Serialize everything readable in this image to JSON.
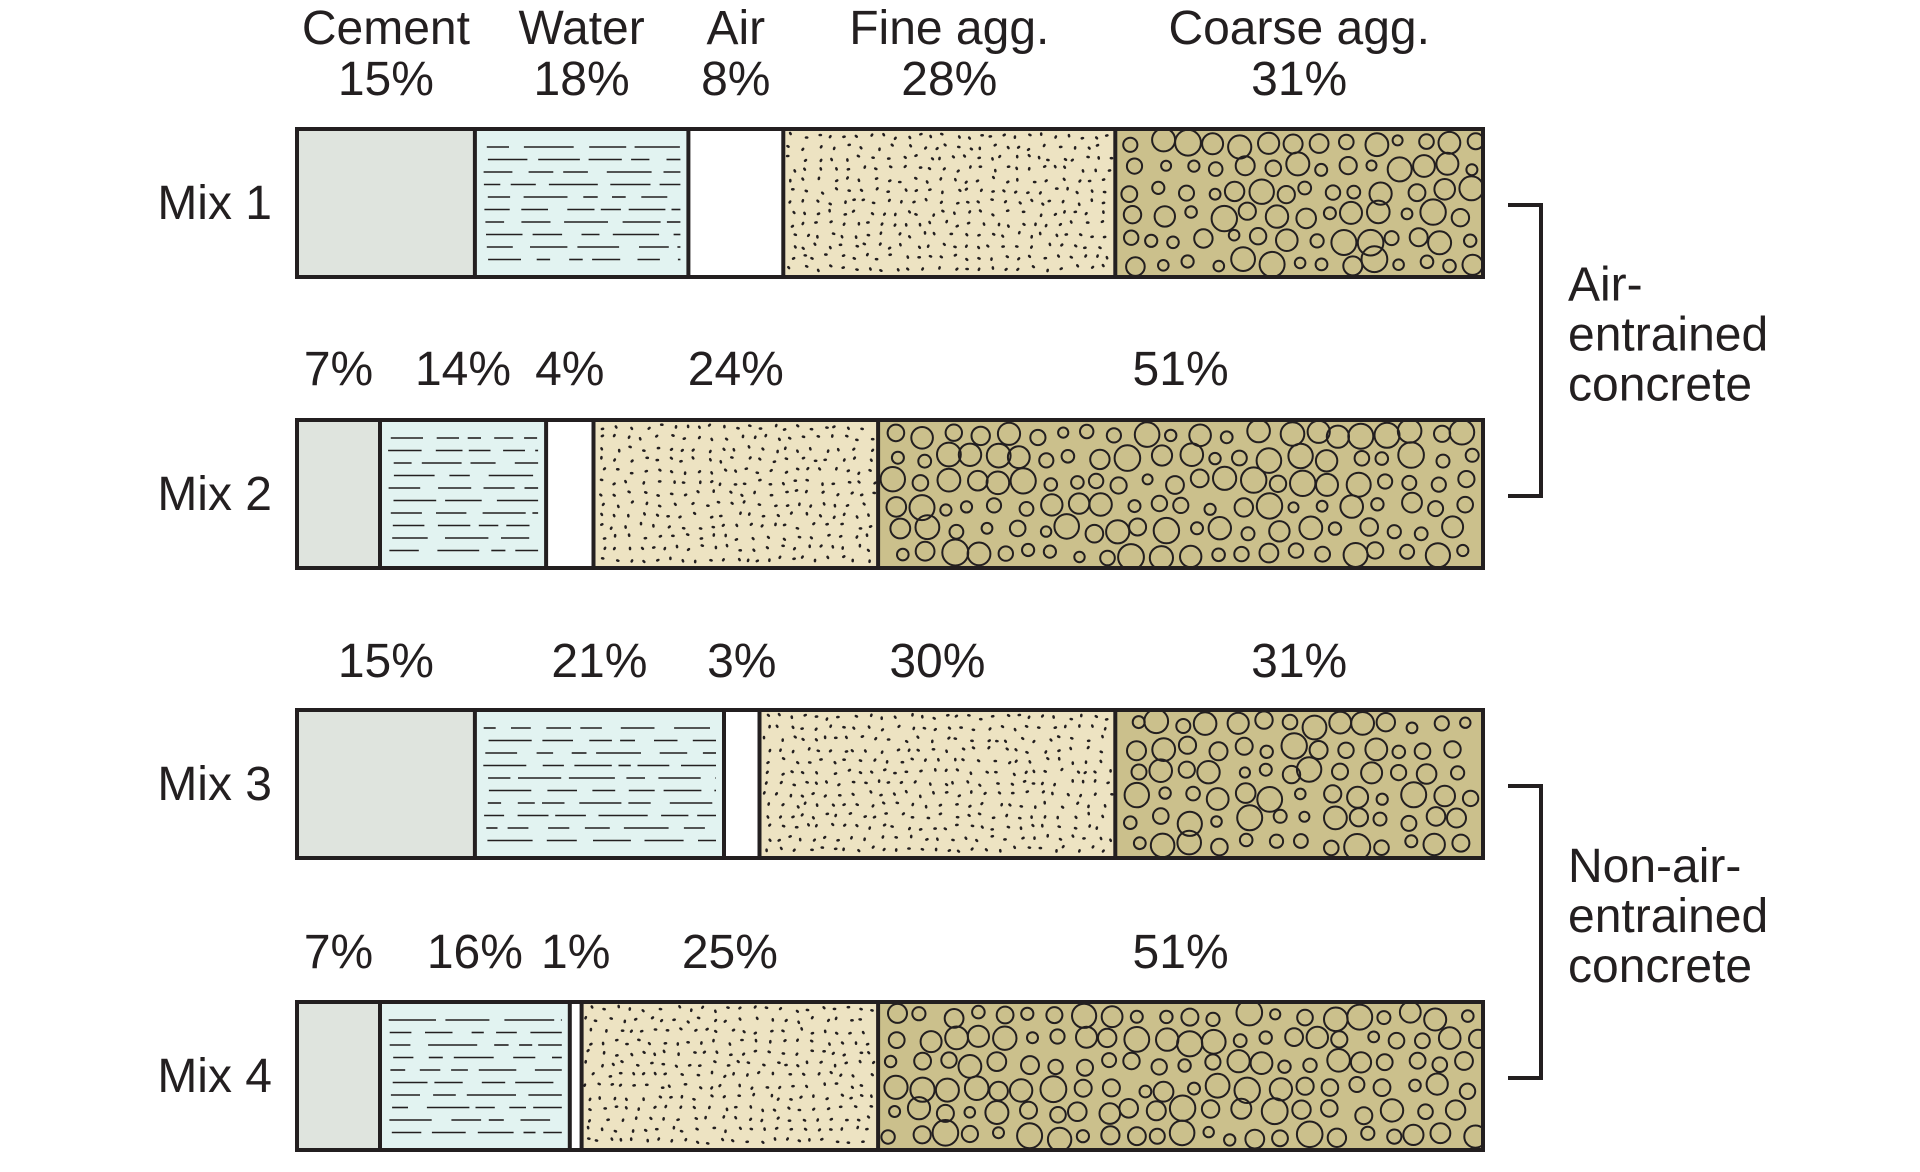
{
  "chart_data": {
    "type": "bar",
    "orientation": "horizontal",
    "stacked": true,
    "normalized": true,
    "categories": [
      "Mix 1",
      "Mix 2",
      "Mix 3",
      "Mix 4"
    ],
    "components": [
      "Cement",
      "Water",
      "Air",
      "Fine agg.",
      "Coarse agg."
    ],
    "series": [
      {
        "name": "Cement",
        "values": [
          15,
          7,
          15,
          7
        ],
        "labels": [
          "15%",
          "7%",
          "15%",
          "7%"
        ]
      },
      {
        "name": "Water",
        "values": [
          18,
          14,
          21,
          16
        ],
        "labels": [
          "18%",
          "14%",
          "21%",
          "16%"
        ]
      },
      {
        "name": "Air",
        "values": [
          8,
          4,
          3,
          1
        ],
        "labels": [
          "8%",
          "4%",
          "3%",
          "1%"
        ]
      },
      {
        "name": "Fine agg.",
        "values": [
          28,
          24,
          30,
          25
        ],
        "labels": [
          "28%",
          "24%",
          "30%",
          "25%"
        ]
      },
      {
        "name": "Coarse agg.",
        "values": [
          31,
          51,
          31,
          51
        ],
        "labels": [
          "31%",
          "51%",
          "31%",
          "51%"
        ]
      }
    ],
    "colors": {
      "Cement": "#dfe4de",
      "Water": "#e2f3f1",
      "Air": "#ffffff",
      "Fine agg.": "#ede3c2",
      "Coarse agg.": "#cbc08c",
      "outline": "#231f20"
    },
    "groups": [
      {
        "label_lines": [
          "Air-",
          "entrained",
          "concrete"
        ],
        "rows": [
          "Mix 1",
          "Mix 2"
        ]
      },
      {
        "label_lines": [
          "Non-air-",
          "entrained",
          "concrete"
        ],
        "rows": [
          "Mix 3",
          "Mix 4"
        ]
      }
    ],
    "grid": false,
    "legend": "none"
  }
}
